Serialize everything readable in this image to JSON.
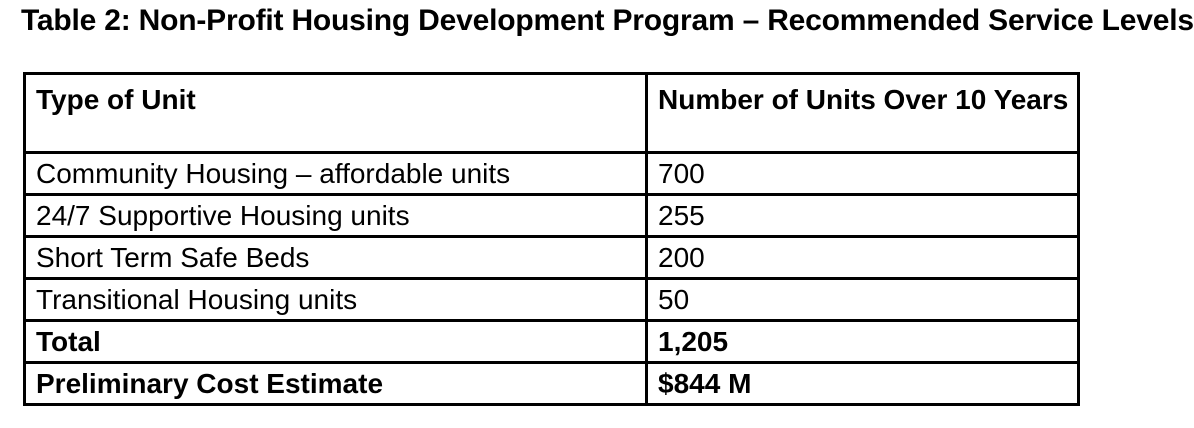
{
  "title": "Table 2: Non-Profit Housing Development Program – Recommended Service Levels",
  "colors": {
    "text": "#000000",
    "background": "#ffffff",
    "table_border": "#000000"
  },
  "table": {
    "headers": [
      "Type of Unit",
      "Number of Units Over 10 Years"
    ],
    "rows": [
      {
        "label": "Community Housing – affordable units",
        "value": "700"
      },
      {
        "label": "24/7 Supportive Housing units",
        "value": "255"
      },
      {
        "label": "Short Term Safe Beds",
        "value": "200"
      },
      {
        "label": "Transitional Housing units",
        "value": "50"
      },
      {
        "label": "Total",
        "value": "1,205"
      },
      {
        "label": "Preliminary Cost Estimate",
        "value": "$844 M"
      }
    ]
  }
}
